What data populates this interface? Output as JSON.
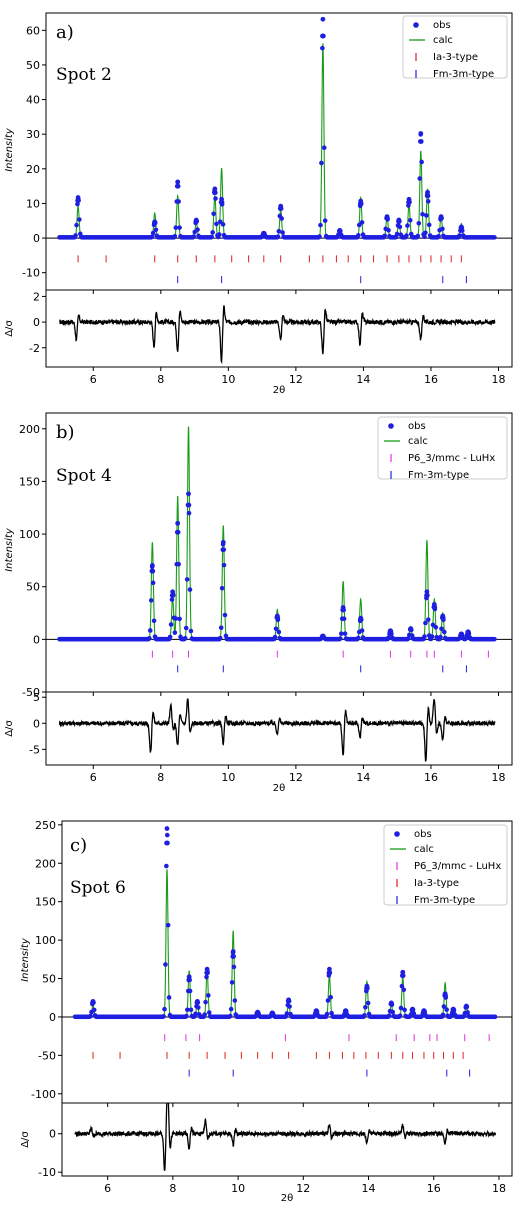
{
  "chart_data": [
    {
      "type": "line",
      "panel_label": "a)",
      "annotation": "Spot 2",
      "xlabel": "2θ",
      "ylabel": "Intensity",
      "diff_ylabel": "Δ/σ",
      "xlim": [
        4.6,
        18.4
      ],
      "ylim": [
        -15,
        65
      ],
      "diff_ylim": [
        -3.5,
        2.5
      ],
      "x_ticks": [
        6,
        8,
        10,
        12,
        14,
        16,
        18
      ],
      "y_ticks": [
        -10,
        0,
        10,
        20,
        30,
        40,
        50,
        60
      ],
      "diff_ticks": [
        -2,
        0,
        2
      ],
      "x_range": [
        5.0,
        17.9
      ],
      "grid": false,
      "legend_position": "top-right",
      "legend": {
        "obs": "obs",
        "calc": "calc"
      },
      "colors": {
        "obs": "#1f1fe0",
        "calc": "#1a9a1a",
        "diff": "#000000"
      },
      "peaks": [
        {
          "x": 5.55,
          "obs": 11.5,
          "calc": 9.0
        },
        {
          "x": 7.82,
          "obs": 4.5,
          "calc": 7.0
        },
        {
          "x": 8.5,
          "obs": 16.0,
          "calc": 12.0
        },
        {
          "x": 9.05,
          "obs": 5.0,
          "calc": 4.5
        },
        {
          "x": 9.6,
          "obs": 14.0,
          "calc": 12.0
        },
        {
          "x": 9.8,
          "obs": 11.0,
          "calc": 20.0
        },
        {
          "x": 11.05,
          "obs": 1.2,
          "calc": 1.0
        },
        {
          "x": 11.55,
          "obs": 9.0,
          "calc": 8.0
        },
        {
          "x": 12.8,
          "obs": 63.0,
          "calc": 56.0
        },
        {
          "x": 13.3,
          "obs": 2.0,
          "calc": 2.0
        },
        {
          "x": 13.92,
          "obs": 10.5,
          "calc": 11.5
        },
        {
          "x": 14.7,
          "obs": 6.0,
          "calc": 6.0
        },
        {
          "x": 15.05,
          "obs": 5.0,
          "calc": 5.0
        },
        {
          "x": 15.35,
          "obs": 11.0,
          "calc": 9.5
        },
        {
          "x": 15.7,
          "obs": 30.0,
          "calc": 25.0
        },
        {
          "x": 15.9,
          "obs": 13.0,
          "calc": 14.0
        },
        {
          "x": 16.3,
          "obs": 6.0,
          "calc": 6.0
        },
        {
          "x": 16.9,
          "obs": 3.0,
          "calc": 4.0
        }
      ],
      "phases": [
        {
          "name": "Ia-3-type",
          "color": "#e02020",
          "y": -6,
          "positions": [
            5.55,
            6.38,
            7.82,
            8.5,
            9.05,
            9.6,
            10.1,
            10.6,
            11.05,
            11.55,
            12.4,
            12.8,
            13.2,
            13.55,
            13.92,
            14.3,
            14.7,
            15.05,
            15.35,
            15.7,
            16.0,
            16.3,
            16.6,
            16.9
          ]
        },
        {
          "name": "Fm-3m-type",
          "color": "#2020e0",
          "y": -12,
          "positions": [
            8.5,
            9.8,
            13.92,
            16.35,
            17.05
          ]
        }
      ],
      "diff_events": [
        {
          "x": 5.5,
          "a": -1.4
        },
        {
          "x": 7.8,
          "a": -2.0
        },
        {
          "x": 8.5,
          "a": -2.3
        },
        {
          "x": 9.8,
          "a": -3.2
        },
        {
          "x": 11.55,
          "a": -1.5
        },
        {
          "x": 12.8,
          "a": -2.6
        },
        {
          "x": 13.9,
          "a": -1.8
        },
        {
          "x": 15.7,
          "a": -1.5
        }
      ]
    },
    {
      "type": "line",
      "panel_label": "b)",
      "annotation": "Spot 4",
      "xlabel": "2θ",
      "ylabel": "Intensity",
      "diff_ylabel": "Δ/σ",
      "xlim": [
        4.6,
        18.4
      ],
      "ylim": [
        -50,
        215
      ],
      "diff_ylim": [
        -8,
        6
      ],
      "x_ticks": [
        6,
        8,
        10,
        12,
        14,
        16,
        18
      ],
      "y_ticks": [
        -50,
        0,
        50,
        100,
        150,
        200
      ],
      "diff_ticks": [
        -5,
        0,
        5
      ],
      "x_range": [
        5.0,
        17.9
      ],
      "grid": false,
      "legend_position": "top-right",
      "legend": {
        "obs": "obs",
        "calc": "calc"
      },
      "colors": {
        "obs": "#1f1fe0",
        "calc": "#1a9a1a",
        "diff": "#000000"
      },
      "peaks": [
        {
          "x": 7.75,
          "obs": 70.0,
          "calc": 92.0
        },
        {
          "x": 8.35,
          "obs": 45.0,
          "calc": 40.0
        },
        {
          "x": 8.5,
          "obs": 110.0,
          "calc": 136.0
        },
        {
          "x": 8.82,
          "obs": 138.0,
          "calc": 202.0
        },
        {
          "x": 9.85,
          "obs": 92.0,
          "calc": 108.0
        },
        {
          "x": 11.45,
          "obs": 22.0,
          "calc": 28.0
        },
        {
          "x": 12.8,
          "obs": 3.0,
          "calc": 3.0
        },
        {
          "x": 13.4,
          "obs": 30.0,
          "calc": 55.0
        },
        {
          "x": 13.92,
          "obs": 20.0,
          "calc": 38.0
        },
        {
          "x": 14.8,
          "obs": 8.0,
          "calc": 8.0
        },
        {
          "x": 15.4,
          "obs": 10.0,
          "calc": 12.0
        },
        {
          "x": 15.88,
          "obs": 45.0,
          "calc": 94.0
        },
        {
          "x": 16.1,
          "obs": 33.0,
          "calc": 38.0
        },
        {
          "x": 16.35,
          "obs": 22.0,
          "calc": 25.0
        },
        {
          "x": 16.9,
          "obs": 5.0,
          "calc": 5.0
        },
        {
          "x": 17.1,
          "obs": 7.0,
          "calc": 7.0
        }
      ],
      "phases": [
        {
          "name": "P6_3/mmc - LuHx",
          "color": "#e030e0",
          "y": -14,
          "positions": [
            7.75,
            8.35,
            8.82,
            11.45,
            13.4,
            14.8,
            15.4,
            15.88,
            16.1,
            16.9,
            17.7
          ]
        },
        {
          "name": "Fm-3m-type",
          "color": "#2020e0",
          "y": -28,
          "positions": [
            8.5,
            9.85,
            13.92,
            16.35,
            17.05
          ]
        }
      ],
      "diff_events": [
        {
          "x": 7.7,
          "a": -6.0
        },
        {
          "x": 8.3,
          "a": 3.5
        },
        {
          "x": 8.5,
          "a": -4.5
        },
        {
          "x": 8.8,
          "a": 5.0
        },
        {
          "x": 9.85,
          "a": -4.0
        },
        {
          "x": 11.45,
          "a": -2.0
        },
        {
          "x": 13.4,
          "a": -6.5
        },
        {
          "x": 13.9,
          "a": -3.0
        },
        {
          "x": 15.85,
          "a": -7.5
        },
        {
          "x": 16.1,
          "a": 5.0
        },
        {
          "x": 16.35,
          "a": -3.5
        }
      ]
    },
    {
      "type": "line",
      "panel_label": "c)",
      "annotation": "Spot 6",
      "xlabel": "2θ",
      "ylabel": "Intensity",
      "diff_ylabel": "Δ/σ",
      "xlim": [
        4.6,
        18.4
      ],
      "ylim": [
        -112,
        255
      ],
      "diff_ylim": [
        -11,
        8
      ],
      "x_ticks": [
        6,
        8,
        10,
        12,
        14,
        16,
        18
      ],
      "y_ticks": [
        -100,
        -50,
        0,
        50,
        100,
        150,
        200,
        250
      ],
      "diff_ticks": [
        -10,
        0
      ],
      "x_range": [
        5.0,
        17.9
      ],
      "grid": false,
      "legend_position": "top-right",
      "legend": {
        "obs": "obs",
        "calc": "calc"
      },
      "colors": {
        "obs": "#1f1fe0",
        "calc": "#1a9a1a",
        "diff": "#000000"
      },
      "peaks": [
        {
          "x": 5.55,
          "obs": 20.0,
          "calc": 15.0
        },
        {
          "x": 7.82,
          "obs": 245.0,
          "calc": 192.0
        },
        {
          "x": 8.5,
          "obs": 52.0,
          "calc": 60.0
        },
        {
          "x": 8.75,
          "obs": 20.0,
          "calc": 18.0
        },
        {
          "x": 9.05,
          "obs": 62.0,
          "calc": 60.0
        },
        {
          "x": 9.85,
          "obs": 85.0,
          "calc": 112.0
        },
        {
          "x": 10.6,
          "obs": 6.0,
          "calc": 6.0
        },
        {
          "x": 11.05,
          "obs": 5.0,
          "calc": 4.0
        },
        {
          "x": 11.55,
          "obs": 22.0,
          "calc": 18.0
        },
        {
          "x": 12.4,
          "obs": 8.0,
          "calc": 6.0
        },
        {
          "x": 12.8,
          "obs": 62.0,
          "calc": 55.0
        },
        {
          "x": 13.3,
          "obs": 8.0,
          "calc": 7.0
        },
        {
          "x": 13.95,
          "obs": 40.0,
          "calc": 46.0
        },
        {
          "x": 14.7,
          "obs": 18.0,
          "calc": 16.0
        },
        {
          "x": 15.05,
          "obs": 58.0,
          "calc": 52.0
        },
        {
          "x": 15.35,
          "obs": 10.0,
          "calc": 10.0
        },
        {
          "x": 15.7,
          "obs": 8.0,
          "calc": 8.0
        },
        {
          "x": 16.35,
          "obs": 30.0,
          "calc": 44.0
        },
        {
          "x": 16.6,
          "obs": 10.0,
          "calc": 10.0
        },
        {
          "x": 17.0,
          "obs": 14.0,
          "calc": 16.0
        }
      ],
      "phases": [
        {
          "name": "P6_3/mmc - LuHx",
          "color": "#e030e0",
          "y": -27,
          "positions": [
            7.75,
            8.4,
            8.82,
            11.45,
            13.4,
            14.85,
            15.4,
            15.88,
            16.1,
            16.95,
            17.7
          ]
        },
        {
          "name": "Ia-3-type",
          "color": "#e02020",
          "y": -50,
          "positions": [
            5.55,
            6.38,
            7.82,
            8.5,
            9.05,
            9.6,
            10.1,
            10.6,
            11.05,
            11.55,
            12.4,
            12.8,
            13.2,
            13.55,
            13.92,
            14.3,
            14.7,
            15.05,
            15.35,
            15.7,
            16.0,
            16.3,
            16.6,
            16.9
          ]
        },
        {
          "name": "Fm-3m-type",
          "color": "#2020e0",
          "y": -73,
          "positions": [
            8.5,
            9.85,
            13.95,
            16.4,
            17.1
          ]
        }
      ],
      "diff_events": [
        {
          "x": 5.5,
          "a": 1.5
        },
        {
          "x": 7.75,
          "a": -10.0
        },
        {
          "x": 7.85,
          "a": 9.5
        },
        {
          "x": 8.5,
          "a": -4.0
        },
        {
          "x": 9.0,
          "a": 3.5
        },
        {
          "x": 9.85,
          "a": -3.0
        },
        {
          "x": 12.8,
          "a": 2.5
        },
        {
          "x": 13.95,
          "a": -2.5
        },
        {
          "x": 15.05,
          "a": 2.5
        },
        {
          "x": 16.35,
          "a": -2.5
        }
      ]
    }
  ]
}
